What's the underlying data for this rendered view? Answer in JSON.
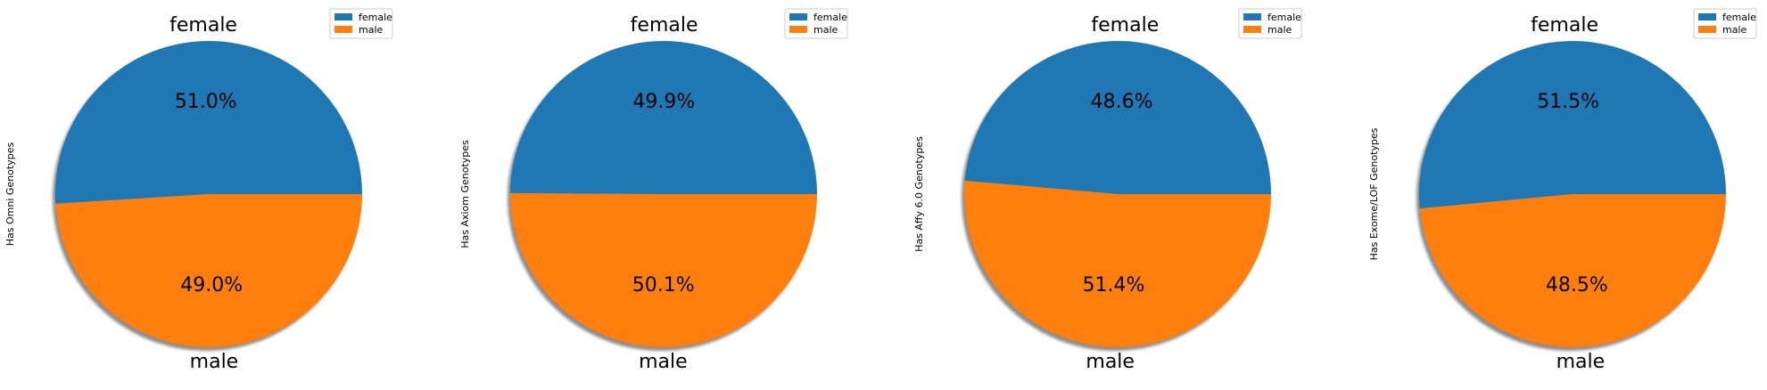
{
  "chart_data": [
    {
      "type": "pie",
      "categories": [
        "female",
        "male"
      ],
      "values": [
        51.0,
        49.0
      ],
      "value_labels": [
        "51.0%",
        "49.0%"
      ],
      "ylabel": "Has Omni Genotypes",
      "legend": [
        "female",
        "male"
      ],
      "legend_placement": "top-right",
      "colors": [
        "#1f77b4",
        "#ff7f0e"
      ],
      "shadow": true
    },
    {
      "type": "pie",
      "categories": [
        "female",
        "male"
      ],
      "values": [
        49.9,
        50.1
      ],
      "value_labels": [
        "49.9%",
        "50.1%"
      ],
      "ylabel": "Has Axiom Genotypes",
      "legend": [
        "female",
        "male"
      ],
      "legend_placement": "top-right",
      "colors": [
        "#1f77b4",
        "#ff7f0e"
      ],
      "shadow": true
    },
    {
      "type": "pie",
      "categories": [
        "female",
        "male"
      ],
      "values": [
        48.6,
        51.4
      ],
      "value_labels": [
        "48.6%",
        "51.4%"
      ],
      "ylabel": "Has Affy 6.0 Genotypes",
      "legend": [
        "female",
        "male"
      ],
      "legend_placement": "top-right",
      "colors": [
        "#1f77b4",
        "#ff7f0e"
      ],
      "shadow": true
    },
    {
      "type": "pie",
      "categories": [
        "female",
        "male"
      ],
      "values": [
        51.5,
        48.5
      ],
      "value_labels": [
        "51.5%",
        "48.5%"
      ],
      "ylabel": "Has Exome/LOF Genotypes",
      "legend": [
        "female",
        "male"
      ],
      "legend_placement": "top-right",
      "colors": [
        "#1f77b4",
        "#ff7f0e"
      ],
      "shadow": true
    }
  ]
}
